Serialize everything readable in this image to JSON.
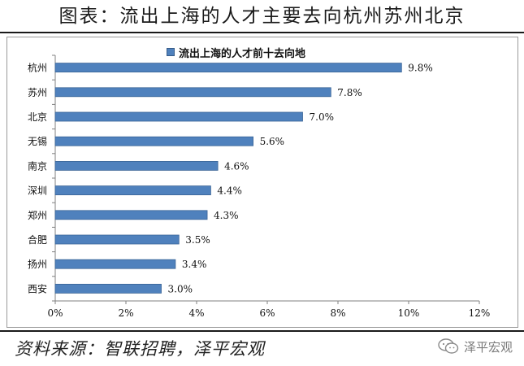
{
  "page": {
    "title": "图表：流出上海的人才主要去向杭州苏州北京",
    "source": "资料来源：智联招聘，泽平宏观",
    "watermark": "泽平宏观",
    "watermark_icon": "wechat-icon"
  },
  "chart_data": {
    "type": "bar",
    "orientation": "horizontal",
    "categories": [
      "杭州",
      "苏州",
      "北京",
      "无锡",
      "南京",
      "深圳",
      "郑州",
      "合肥",
      "扬州",
      "西安"
    ],
    "series": [
      {
        "name": "流出上海的人才前十去向地",
        "values": [
          9.8,
          7.8,
          7.0,
          5.6,
          4.6,
          4.4,
          4.3,
          3.5,
          3.4,
          3.0
        ],
        "value_labels": [
          "9.8%",
          "7.8%",
          "7.0%",
          "5.6%",
          "4.6%",
          "4.4%",
          "4.3%",
          "3.5%",
          "3.4%",
          "3.0%"
        ],
        "color": "#4f81bd"
      }
    ],
    "xlim": [
      0,
      12
    ],
    "xticks": [
      0,
      2,
      4,
      6,
      8,
      10,
      12
    ],
    "xtick_labels": [
      "0%",
      "2%",
      "4%",
      "6%",
      "8%",
      "10%",
      "12%"
    ],
    "grid": false,
    "legend_position": "top-center"
  }
}
